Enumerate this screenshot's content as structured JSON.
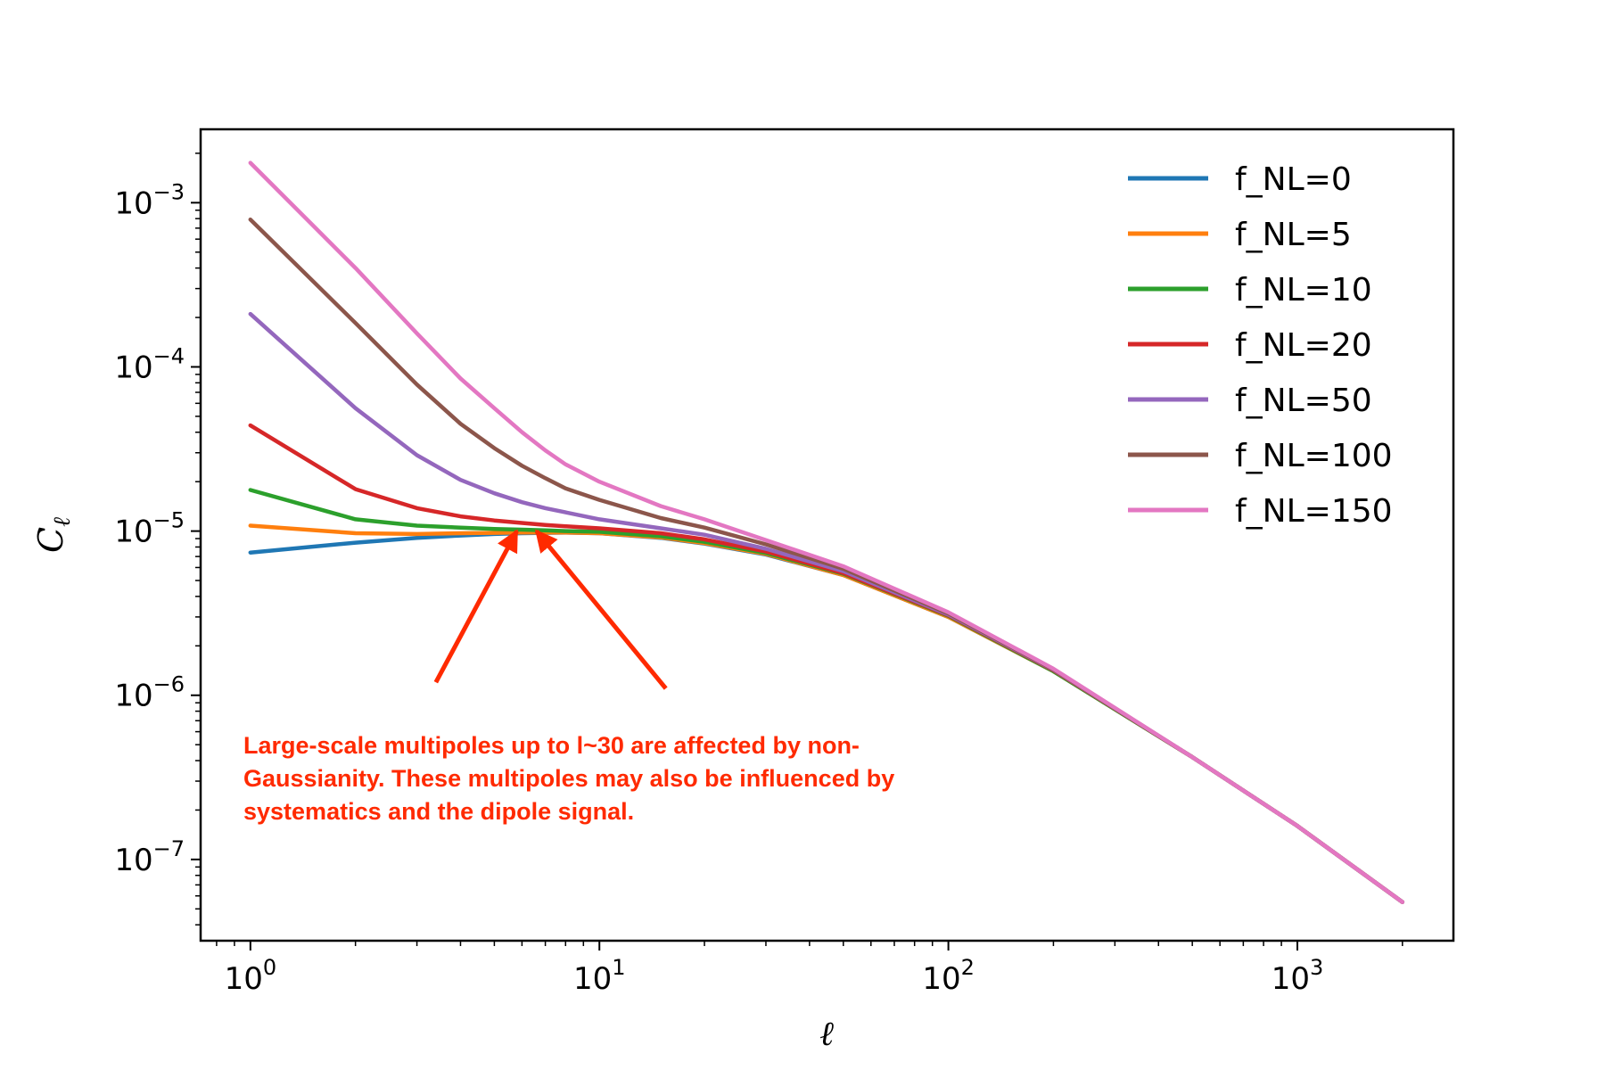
{
  "chart_data": {
    "type": "line",
    "xscale": "log",
    "yscale": "log",
    "xlim": [
      0.72,
      2800
    ],
    "ylim": [
      3.2e-08,
      0.0028
    ],
    "xlabel": "ℓ",
    "ylabel": "C",
    "ylabel_sub": "ℓ",
    "x_ticks": [
      {
        "value": 1,
        "base": "10",
        "exp": "0"
      },
      {
        "value": 10,
        "base": "10",
        "exp": "1"
      },
      {
        "value": 100,
        "base": "10",
        "exp": "2"
      },
      {
        "value": 1000,
        "base": "10",
        "exp": "3"
      }
    ],
    "y_ticks": [
      {
        "value": 1e-07,
        "base": "10",
        "exp": "−7"
      },
      {
        "value": 1e-06,
        "base": "10",
        "exp": "−6"
      },
      {
        "value": 1e-05,
        "base": "10",
        "exp": "−5"
      },
      {
        "value": 0.0001,
        "base": "10",
        "exp": "−4"
      },
      {
        "value": 0.001,
        "base": "10",
        "exp": "−3"
      }
    ],
    "grid": false,
    "legend_position": "top-right",
    "x": [
      1,
      2,
      3,
      4,
      5,
      6,
      7,
      8,
      10,
      15,
      20,
      30,
      50,
      100,
      200,
      500,
      1000,
      2000
    ],
    "series": [
      {
        "name": "f_NL=0",
        "color": "#1f77b4",
        "values": [
          7.4e-06,
          8.5e-06,
          9.1e-06,
          9.4e-06,
          9.6e-06,
          9.7e-06,
          9.75e-06,
          9.78e-06,
          9.7e-06,
          9.1e-06,
          8.4e-06,
          7.2e-06,
          5.4e-06,
          3e-06,
          1.4e-06,
          4.2e-07,
          1.6e-07,
          5.5e-08
        ]
      },
      {
        "name": "f_NL=5",
        "color": "#ff7f0e",
        "values": [
          1.08e-05,
          9.7e-06,
          9.6e-06,
          9.7e-06,
          9.75e-06,
          9.8e-06,
          9.8e-06,
          9.8e-06,
          9.7e-06,
          9.15e-06,
          8.45e-06,
          7.25e-06,
          5.4e-06,
          3e-06,
          1.4e-06,
          4.2e-07,
          1.6e-07,
          5.5e-08
        ]
      },
      {
        "name": "f_NL=10",
        "color": "#2ca02c",
        "values": [
          1.78e-05,
          1.18e-05,
          1.08e-05,
          1.05e-05,
          1.03e-05,
          1.02e-05,
          1.01e-05,
          1e-05,
          9.9e-06,
          9.3e-06,
          8.6e-06,
          7.35e-06,
          5.5e-06,
          3.05e-06,
          1.4e-06,
          4.2e-07,
          1.6e-07,
          5.5e-08
        ]
      },
      {
        "name": "f_NL=20",
        "color": "#d62728",
        "values": [
          4.4e-05,
          1.8e-05,
          1.38e-05,
          1.23e-05,
          1.16e-05,
          1.12e-05,
          1.09e-05,
          1.07e-05,
          1.04e-05,
          9.7e-06,
          8.9e-06,
          7.5e-06,
          5.55e-06,
          3.07e-06,
          1.42e-06,
          4.2e-07,
          1.6e-07,
          5.5e-08
        ]
      },
      {
        "name": "f_NL=50",
        "color": "#9467bd",
        "values": [
          0.00021,
          5.6e-05,
          2.9e-05,
          2.05e-05,
          1.7e-05,
          1.5e-05,
          1.38e-05,
          1.3e-05,
          1.18e-05,
          1.04e-05,
          9.5e-06,
          7.8e-06,
          5.7e-06,
          3.1e-06,
          1.43e-06,
          4.2e-07,
          1.6e-07,
          5.5e-08
        ]
      },
      {
        "name": "f_NL=100",
        "color": "#8c564b",
        "values": [
          0.00079,
          0.000185,
          7.8e-05,
          4.5e-05,
          3.2e-05,
          2.5e-05,
          2.1e-05,
          1.82e-05,
          1.55e-05,
          1.2e-05,
          1.05e-05,
          8.3e-06,
          5.9e-06,
          3.15e-06,
          1.44e-06,
          4.2e-07,
          1.6e-07,
          5.5e-08
        ]
      },
      {
        "name": "f_NL=150",
        "color": "#e377c2",
        "values": [
          0.00175,
          0.0004,
          0.00016,
          8.5e-05,
          5.6e-05,
          4e-05,
          3.1e-05,
          2.55e-05,
          2e-05,
          1.42e-05,
          1.18e-05,
          8.8e-06,
          6.1e-06,
          3.2e-06,
          1.45e-06,
          4.2e-07,
          1.6e-07,
          5.5e-08
        ]
      }
    ],
    "annotation": {
      "lines": [
        "Large-scale multipoles up to l~30 are affected by non-",
        "Gaussianity. These multipoles may also be influenced by",
        "systematics and the dipole signal."
      ],
      "color": "#ff2a00",
      "arrows": [
        {
          "from": [
            3.4,
            1.2e-06
          ],
          "to": [
            5.8,
            1e-05
          ]
        },
        {
          "from": [
            15.5,
            1.1e-06
          ],
          "to": [
            6.6,
            1e-05
          ]
        }
      ]
    }
  }
}
